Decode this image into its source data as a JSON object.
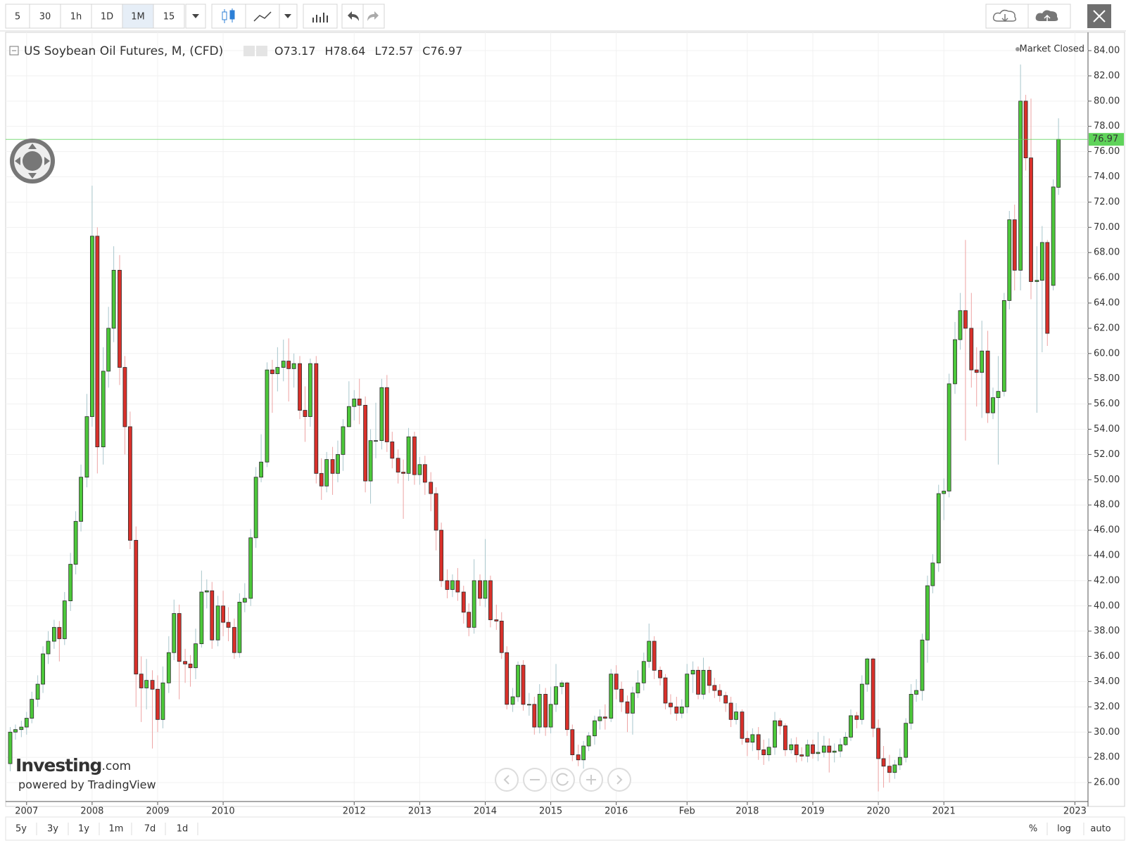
{
  "toolbar": {
    "intervals": [
      "5",
      "30",
      "1h",
      "1D",
      "1M",
      "15"
    ]
  },
  "header": {
    "title": "US Soybean Oil Futures, M, (CFD)",
    "ohlc_labels": [
      "O",
      "H",
      "L",
      "C"
    ],
    "status": "Market Closed"
  },
  "branding": {
    "logo": "Investing",
    "logo_suffix": ".com",
    "powered_by": "powered by TradingView"
  },
  "range_buttons": [
    "5y",
    "3y",
    "1y",
    "1m",
    "7d",
    "1d"
  ],
  "scale_buttons": [
    "%",
    "log",
    "auto"
  ],
  "chart_data": {
    "type": "candlestick",
    "up_color": "#4cc83a",
    "down_color": "#d9302a",
    "up_wick_color": "#a8c6cc",
    "down_wick_color": "#eea3a3",
    "last_price_color": "#5fd35a",
    "grid": true,
    "xlim": [
      2006.68,
      2023.2
    ],
    "xticks": [
      2007,
      2008,
      2009,
      2010,
      2012,
      2013,
      2014,
      2015,
      2016,
      {
        "value": 2017.08,
        "label": "Feb"
      },
      2018,
      2019,
      2020,
      2021,
      2023
    ],
    "ylim": [
      24.5,
      85.45
    ],
    "yticks": [
      {
        "value": 26,
        "label": "26.00"
      },
      {
        "value": 28,
        "label": "28.00"
      },
      {
        "value": 30,
        "label": "30.00"
      },
      {
        "value": 32,
        "label": "32.00"
      },
      {
        "value": 34,
        "label": "34.00"
      },
      {
        "value": 36,
        "label": "36.00"
      },
      {
        "value": 38,
        "label": "38.00"
      },
      {
        "value": 40,
        "label": "40.00"
      },
      {
        "value": 42,
        "label": "42.00"
      },
      {
        "value": 44,
        "label": "44.00"
      },
      {
        "value": 46,
        "label": "46.00"
      },
      {
        "value": 48,
        "label": "48.00"
      },
      {
        "value": 50,
        "label": "50.00"
      },
      {
        "value": 52,
        "label": "52.00"
      },
      {
        "value": 54,
        "label": "54.00"
      },
      {
        "value": 56,
        "label": "56.00"
      },
      {
        "value": 58,
        "label": "58.00"
      },
      {
        "value": 60,
        "label": "60.00"
      },
      {
        "value": 62,
        "label": "62.00"
      },
      {
        "value": 64,
        "label": "64.00"
      },
      {
        "value": 66,
        "label": "66.00"
      },
      {
        "value": 68,
        "label": "68.00"
      },
      {
        "value": 70,
        "label": "70.00"
      },
      {
        "value": 72,
        "label": "72.00"
      },
      {
        "value": 74,
        "label": "74.00"
      },
      {
        "value": 76,
        "label": "76.00"
      },
      {
        "value": 78,
        "label": "78.00"
      },
      {
        "value": 80,
        "label": "80.00"
      },
      {
        "value": 82,
        "label": "82.00"
      },
      {
        "value": 84,
        "label": "84.00"
      }
    ],
    "x": [
      2006.75,
      2006.83,
      2006.92,
      2007,
      2007.08,
      2007.17,
      2007.25,
      2007.33,
      2007.42,
      2007.5,
      2007.58,
      2007.67,
      2007.75,
      2007.83,
      2007.92,
      2008,
      2008.08,
      2008.17,
      2008.25,
      2008.33,
      2008.42,
      2008.5,
      2008.58,
      2008.67,
      2008.75,
      2008.83,
      2008.92,
      2009,
      2009.08,
      2009.17,
      2009.25,
      2009.33,
      2009.42,
      2009.5,
      2009.58,
      2009.67,
      2009.75,
      2009.83,
      2009.92,
      2010,
      2010.08,
      2010.17,
      2010.25,
      2010.33,
      2010.42,
      2010.5,
      2010.58,
      2010.67,
      2010.75,
      2010.83,
      2010.92,
      2011,
      2011.08,
      2011.17,
      2011.25,
      2011.33,
      2011.42,
      2011.5,
      2011.58,
      2011.67,
      2011.75,
      2011.83,
      2011.92,
      2012,
      2012.08,
      2012.17,
      2012.25,
      2012.33,
      2012.42,
      2012.5,
      2012.58,
      2012.67,
      2012.75,
      2012.83,
      2012.92,
      2013,
      2013.08,
      2013.17,
      2013.25,
      2013.33,
      2013.42,
      2013.5,
      2013.58,
      2013.67,
      2013.75,
      2013.83,
      2013.92,
      2014,
      2014.08,
      2014.17,
      2014.25,
      2014.33,
      2014.42,
      2014.5,
      2014.58,
      2014.67,
      2014.75,
      2014.83,
      2014.92,
      2015,
      2015.08,
      2015.17,
      2015.25,
      2015.33,
      2015.42,
      2015.5,
      2015.58,
      2015.67,
      2015.75,
      2015.83,
      2015.92,
      2016,
      2016.08,
      2016.17,
      2016.25,
      2016.33,
      2016.42,
      2016.5,
      2016.58,
      2016.67,
      2016.75,
      2016.83,
      2016.92,
      2017,
      2017.08,
      2017.17,
      2017.25,
      2017.33,
      2017.42,
      2017.5,
      2017.58,
      2017.67,
      2017.75,
      2017.83,
      2017.92,
      2018,
      2018.08,
      2018.17,
      2018.25,
      2018.33,
      2018.42,
      2018.5,
      2018.58,
      2018.67,
      2018.75,
      2018.83,
      2018.92,
      2019,
      2019.08,
      2019.17,
      2019.25,
      2019.33,
      2019.42,
      2019.5,
      2019.58,
      2019.67,
      2019.75,
      2019.83,
      2019.92,
      2020,
      2020.08,
      2020.17,
      2020.25,
      2020.33,
      2020.42,
      2020.5,
      2020.58,
      2020.67,
      2020.75,
      2020.83,
      2020.92,
      2021,
      2021.08,
      2021.17,
      2021.25,
      2021.33,
      2021.42,
      2021.5,
      2021.58,
      2021.67,
      2021.75,
      2021.83,
      2021.92,
      2022,
      2022.08,
      2022.17,
      2022.25,
      2022.33,
      2022.42,
      2022.5,
      2022.58,
      2022.67,
      2022.75
    ],
    "open": [
      27.5,
      30.0,
      30.2,
      30.4,
      31.1,
      32.6,
      33.8,
      36.2,
      37.2,
      38.3,
      37.4,
      40.4,
      43.3,
      46.7,
      50.2,
      55.0,
      69.3,
      52.6,
      58.6,
      62.0,
      66.6,
      58.9,
      54.2,
      45.2,
      34.6,
      33.5,
      34.1,
      33.4,
      31.0,
      33.9,
      36.3,
      39.4,
      35.6,
      35.4,
      35.1,
      37.0,
      41.1,
      41.2,
      37.3,
      40.0,
      38.7,
      38.3,
      36.3,
      40.3,
      40.6,
      45.4,
      50.2,
      51.4,
      58.7,
      58.4,
      58.9,
      59.4,
      58.8,
      59.2,
      55.5,
      55.0,
      59.2,
      50.5,
      49.5,
      51.6,
      50.5,
      52.0,
      54.2,
      55.8,
      56.4,
      55.9,
      49.9,
      53.1,
      53.1,
      57.3,
      53.0,
      51.7,
      50.6,
      50.5,
      53.4,
      50.4,
      51.2,
      49.8,
      48.9,
      46.0,
      42.0,
      41.3,
      42.0,
      41.1,
      39.5,
      38.3,
      42.0,
      40.6,
      42.0,
      38.9,
      38.8,
      36.3,
      32.2,
      32.8,
      35.3,
      32.2,
      32.2,
      30.4,
      33.0,
      30.4,
      32.2,
      33.6,
      33.9,
      30.2,
      28.2,
      27.8,
      28.9,
      29.7,
      30.9,
      31.2,
      31.1,
      34.6,
      33.4,
      32.4,
      31.5,
      33.1,
      33.9,
      35.6,
      37.2,
      34.9,
      34.3,
      32.3,
      32.0,
      31.5,
      32.0,
      34.6,
      34.9,
      33.0,
      34.9,
      33.7,
      33.3,
      32.9,
      32.3,
      31.0,
      31.6,
      29.5,
      29.2,
      29.8,
      28.6,
      28.2,
      28.8,
      30.9,
      30.5,
      28.6,
      29.0,
      28.2,
      28.1,
      29.0,
      28.3,
      28.4,
      28.9,
      28.4,
      28.5,
      29.0,
      29.6,
      31.3,
      31.0,
      33.8,
      35.8,
      30.3,
      27.9,
      27.3,
      26.8,
      27.4,
      28.0,
      30.7,
      33.0,
      33.3,
      37.3,
      41.6,
      43.4,
      48.9,
      49.1,
      57.6,
      61.1,
      63.4,
      62.0,
      58.7,
      58.5,
      60.2,
      55.3,
      56.5,
      57.0,
      64.2,
      70.6,
      66.6,
      80.0,
      75.5,
      65.7,
      65.8,
      68.8,
      65.4,
      73.17
    ],
    "high": [
      30.4,
      30.6,
      30.9,
      31.6,
      33.2,
      34.5,
      36.8,
      38.0,
      38.9,
      38.8,
      41.1,
      44.2,
      47.5,
      51.2,
      56.8,
      73.3,
      70.0,
      60.5,
      63.7,
      68.5,
      67.8,
      59.8,
      55.4,
      46.3,
      36.0,
      35.8,
      34.9,
      34.5,
      35.2,
      37.6,
      40.5,
      40.1,
      36.6,
      36.1,
      38.2,
      42.8,
      42.1,
      41.9,
      40.8,
      41.2,
      39.9,
      39.0,
      41.0,
      41.8,
      46.1,
      51.0,
      53.6,
      59.3,
      59.5,
      60.5,
      61.1,
      61.2,
      60.0,
      59.8,
      57.4,
      59.6,
      59.8,
      51.7,
      52.2,
      52.6,
      53.1,
      54.8,
      57.8,
      57.1,
      58.0,
      56.6,
      54.0,
      56.1,
      58.0,
      58.3,
      53.8,
      52.4,
      51.6,
      54.1,
      53.8,
      51.8,
      51.9,
      50.6,
      49.4,
      46.6,
      42.9,
      42.5,
      43.0,
      41.6,
      40.2,
      43.7,
      42.5,
      45.3,
      42.4,
      40.1,
      39.5,
      36.8,
      33.5,
      35.6,
      35.7,
      33.1,
      32.8,
      33.8,
      33.5,
      33.6,
      35.4,
      34.1,
      34.0,
      30.6,
      29.0,
      29.3,
      30.0,
      31.3,
      31.8,
      32.2,
      35.0,
      35.3,
      34.0,
      32.9,
      33.6,
      34.9,
      36.3,
      38.6,
      37.6,
      35.2,
      34.6,
      33.0,
      32.8,
      32.6,
      35.4,
      35.6,
      35.2,
      35.9,
      35.2,
      34.3,
      33.8,
      33.2,
      32.8,
      32.3,
      31.8,
      30.1,
      30.3,
      30.4,
      29.4,
      29.5,
      31.6,
      31.1,
      30.7,
      29.5,
      29.6,
      28.8,
      29.4,
      29.4,
      30.0,
      29.7,
      29.5,
      29.1,
      29.5,
      30.0,
      31.8,
      31.6,
      34.5,
      35.9,
      35.9,
      31.0,
      28.9,
      28.2,
      27.8,
      28.7,
      31.1,
      33.8,
      34.2,
      37.8,
      42.4,
      44.1,
      49.6,
      50.1,
      58.4,
      62.5,
      64.8,
      69.0,
      64.8,
      60.5,
      62.6,
      61.8,
      57.3,
      59.8,
      64.8,
      71.3,
      71.8,
      82.9,
      80.5,
      80.2,
      68.5,
      70.1,
      69.0,
      73.8,
      78.64
    ],
    "low": [
      26.9,
      29.4,
      29.6,
      29.8,
      30.7,
      32.0,
      33.1,
      35.4,
      36.6,
      35.6,
      36.9,
      39.6,
      42.5,
      45.9,
      49.4,
      54.2,
      50.5,
      51.2,
      57.3,
      60.9,
      57.5,
      52.0,
      44.5,
      32.0,
      30.8,
      31.8,
      28.7,
      30.0,
      30.3,
      33.1,
      35.7,
      32.6,
      33.9,
      33.6,
      34.2,
      36.7,
      39.8,
      36.6,
      36.8,
      37.6,
      37.2,
      35.8,
      35.9,
      39.5,
      40.0,
      44.6,
      49.8,
      51.0,
      55.3,
      57.0,
      57.8,
      56.2,
      57.3,
      54.8,
      53.0,
      54.2,
      49.7,
      48.4,
      49.0,
      48.8,
      49.8,
      50.7,
      54.4,
      54.7,
      54.4,
      49.0,
      48.1,
      51.7,
      52.4,
      52.2,
      50.9,
      49.7,
      46.9,
      49.9,
      49.6,
      49.6,
      48.8,
      47.5,
      44.4,
      41.5,
      40.6,
      40.7,
      40.4,
      38.6,
      37.6,
      37.8,
      40.0,
      39.9,
      38.3,
      38.1,
      35.8,
      31.8,
      31.6,
      32.4,
      31.7,
      31.3,
      29.8,
      29.9,
      29.7,
      29.9,
      31.6,
      33.0,
      29.7,
      27.7,
      27.3,
      27.1,
      28.5,
      29.0,
      30.2,
      30.2,
      30.8,
      32.6,
      31.6,
      30.0,
      29.8,
      32.7,
      33.3,
      35.1,
      34.2,
      33.7,
      31.8,
      31.4,
      30.9,
      31.1,
      31.5,
      33.1,
      32.6,
      32.6,
      33.1,
      32.7,
      32.4,
      31.6,
      30.4,
      30.6,
      29.0,
      28.1,
      28.5,
      27.8,
      27.4,
      27.7,
      28.2,
      29.8,
      28.1,
      28.3,
      27.6,
      27.7,
      27.6,
      27.9,
      27.7,
      28.0,
      26.8,
      27.6,
      28.0,
      28.9,
      29.3,
      30.3,
      30.6,
      33.2,
      29.6,
      25.3,
      25.6,
      26.0,
      26.3,
      27.0,
      27.6,
      30.2,
      32.4,
      32.5,
      35.5,
      41.0,
      42.7,
      46.8,
      48.6,
      56.8,
      60.3,
      53.1,
      57.3,
      55.8,
      54.9,
      54.5,
      54.8,
      51.2,
      56.6,
      63.5,
      65.0,
      65.0,
      74.5,
      64.3,
      55.3,
      60.1,
      60.6,
      65.0,
      72.57
    ],
    "close": [
      30.0,
      30.2,
      30.4,
      31.1,
      32.6,
      33.8,
      36.2,
      37.2,
      38.3,
      37.4,
      40.4,
      43.3,
      46.7,
      50.2,
      55.0,
      69.3,
      52.6,
      58.6,
      62.0,
      66.6,
      58.9,
      54.2,
      45.2,
      34.6,
      33.5,
      34.1,
      33.4,
      31.0,
      33.9,
      36.3,
      39.4,
      35.6,
      35.4,
      35.1,
      37.0,
      41.1,
      41.2,
      37.3,
      40.0,
      38.7,
      38.3,
      36.3,
      40.3,
      40.6,
      45.4,
      50.2,
      51.4,
      58.7,
      58.4,
      58.9,
      59.4,
      58.8,
      59.2,
      55.5,
      55.0,
      59.2,
      50.5,
      49.5,
      51.6,
      50.5,
      52.0,
      54.2,
      55.8,
      56.4,
      55.9,
      49.9,
      53.1,
      53.1,
      57.3,
      53.0,
      51.7,
      50.6,
      50.5,
      53.4,
      50.4,
      51.2,
      49.8,
      48.9,
      46.0,
      42.0,
      41.3,
      42.0,
      41.1,
      39.5,
      38.3,
      42.0,
      40.6,
      42.0,
      38.9,
      38.8,
      36.3,
      32.2,
      32.8,
      35.3,
      32.2,
      32.2,
      30.4,
      33.0,
      30.4,
      32.2,
      33.6,
      33.9,
      30.2,
      28.2,
      27.8,
      28.9,
      29.7,
      30.9,
      31.2,
      31.1,
      34.6,
      33.4,
      32.4,
      31.5,
      33.1,
      33.9,
      35.6,
      37.2,
      34.9,
      34.3,
      32.3,
      32.0,
      31.5,
      32.0,
      34.6,
      34.9,
      33.0,
      34.9,
      33.7,
      33.3,
      32.9,
      32.3,
      31.0,
      31.6,
      29.5,
      29.2,
      29.8,
      28.6,
      28.2,
      28.8,
      30.9,
      30.5,
      28.6,
      29.0,
      28.2,
      28.1,
      29.0,
      28.3,
      28.4,
      28.9,
      28.4,
      28.5,
      29.0,
      29.6,
      31.3,
      31.0,
      33.8,
      35.8,
      30.3,
      27.9,
      27.3,
      26.8,
      27.4,
      28.0,
      30.7,
      33.0,
      33.3,
      37.3,
      41.6,
      43.4,
      48.9,
      49.1,
      57.6,
      61.1,
      63.4,
      62.0,
      58.7,
      58.5,
      60.2,
      55.3,
      56.5,
      57.0,
      64.2,
      70.6,
      66.6,
      80.0,
      75.5,
      65.7,
      65.8,
      68.8,
      61.6,
      73.2,
      76.97
    ]
  }
}
